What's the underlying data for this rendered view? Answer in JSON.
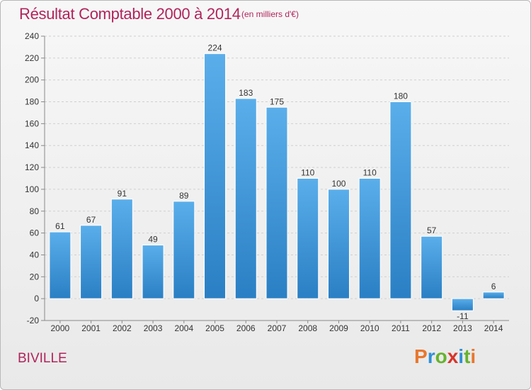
{
  "header": {
    "title": "Résultat Comptable 2000 à 2014",
    "subtitle": "(en milliers d'€)"
  },
  "footer": {
    "commune": "BIVILLE"
  },
  "logo": {
    "letters": [
      {
        "char": "P",
        "color": "#e8772e"
      },
      {
        "char": "r",
        "color": "#2f8fd8"
      },
      {
        "char": "o",
        "color": "#66b32e"
      },
      {
        "char": "x",
        "color": "#d8352a"
      },
      {
        "char": "i",
        "color": "#2f8fd8"
      },
      {
        "char": "t",
        "color": "#66b32e"
      },
      {
        "char": "i",
        "color": "#e8772e"
      }
    ]
  },
  "colors": {
    "bar_light": "#5aaeea",
    "bar_dark": "#2a7fc4",
    "grid": "#cfcfcf",
    "axis_text": "#333333",
    "accent": "#b0245a"
  },
  "chart_data": {
    "type": "bar",
    "title": "Résultat Comptable 2000 à 2014",
    "subtitle": "(en milliers d'€)",
    "xlabel": "",
    "ylabel": "",
    "ylim": [
      -20,
      240
    ],
    "yticks": [
      -20,
      0,
      20,
      40,
      60,
      80,
      100,
      120,
      140,
      160,
      180,
      200,
      220,
      240
    ],
    "grid": true,
    "categories": [
      "2000",
      "2001",
      "2002",
      "2003",
      "2004",
      "2005",
      "2006",
      "2007",
      "2008",
      "2009",
      "2010",
      "2011",
      "2012",
      "2013",
      "2014"
    ],
    "values": [
      61,
      67,
      91,
      49,
      89,
      224,
      183,
      175,
      110,
      100,
      110,
      180,
      57,
      -11,
      6
    ]
  }
}
